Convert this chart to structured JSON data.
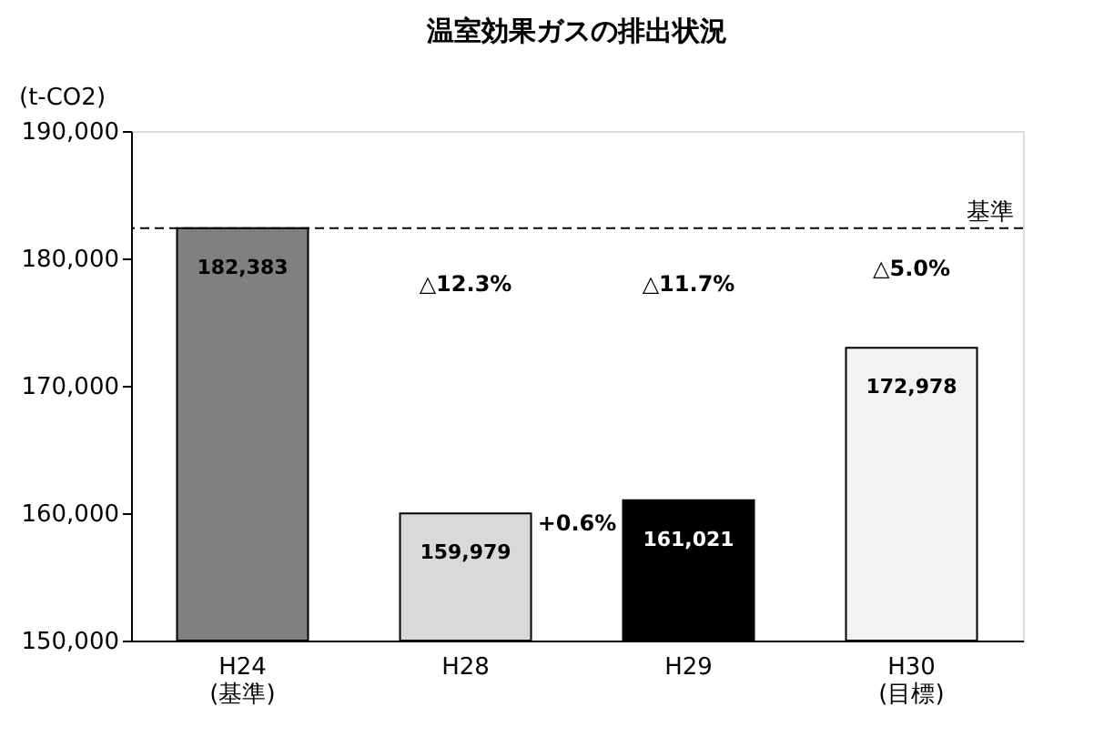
{
  "chart_data": {
    "type": "bar",
    "title": "温室効果ガスの排出状況",
    "ylabel": "(t-CO2)",
    "categories": [
      "H24\n(基準)",
      "H28",
      "H29",
      "H30\n(目標)"
    ],
    "values": [
      182383,
      159979,
      161021,
      172978
    ],
    "value_labels": [
      "182,383",
      "159,979",
      "161,021",
      "172,978"
    ],
    "colors": [
      "#808080",
      "#d9d9d9",
      "#000000",
      "#f2f2f2"
    ],
    "ylim": [
      150000,
      190000
    ],
    "yticks": [
      {
        "value": 150000,
        "label": "150,000"
      },
      {
        "value": 160000,
        "label": "160,000"
      },
      {
        "value": 170000,
        "label": "170,000"
      },
      {
        "value": 180000,
        "label": "180,000"
      },
      {
        "value": 190000,
        "label": "190,000"
      }
    ],
    "ref_lines": [
      {
        "axis": "y",
        "value": 182383,
        "label": "基準",
        "line_style": "dashed",
        "color": "#000000"
      }
    ],
    "annotations": [
      "△12.3%",
      "△11.7%",
      "△5.0%",
      "+0.6%"
    ]
  }
}
